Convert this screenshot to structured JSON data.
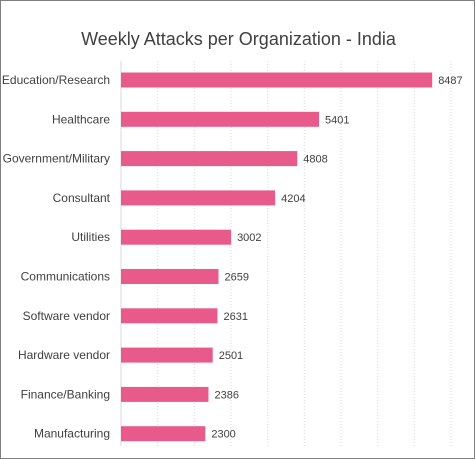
{
  "chart_data": {
    "type": "bar",
    "orientation": "horizontal",
    "title": "Weekly Attacks per Organization - India",
    "categories": [
      "Education/Research",
      "Healthcare",
      "Government/Military",
      "Consultant",
      "Utilities",
      "Communications",
      "Software vendor",
      "Hardware vendor",
      "Finance/Banking",
      "Manufacturing"
    ],
    "values": [
      8487,
      5401,
      4808,
      4204,
      3002,
      2659,
      2631,
      2501,
      2386,
      2300
    ],
    "xlim": [
      0,
      9000
    ],
    "grid": "vertical dotted",
    "legend": "none",
    "bar_color": "#e75a8a"
  }
}
